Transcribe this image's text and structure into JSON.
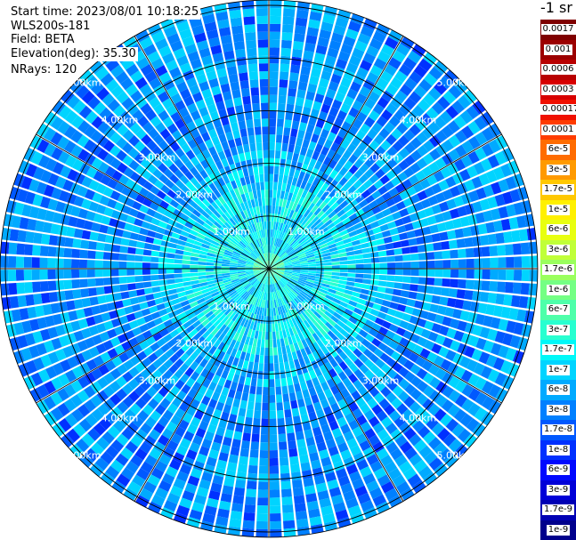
{
  "header": {
    "start_time": "Start time: 2023/08/01 10:18:25",
    "instrument": "WLS200s-181",
    "field": "Field: BETA",
    "elevation": "Elevation(deg): 35.30",
    "nrays": "NRays: 120"
  },
  "colorbar": {
    "unit": "-1 sr",
    "labels": [
      "0.0017",
      "0.001",
      "0.0006",
      "0.0003",
      "0.00017",
      "0.0001",
      "6e-5",
      "3e-5",
      "1.7e-5",
      "1e-5",
      "6e-6",
      "3e-6",
      "1.7e-6",
      "1e-6",
      "6e-7",
      "3e-7",
      "1.7e-7",
      "1e-7",
      "6e-8",
      "3e-8",
      "1.7e-8",
      "1e-8",
      "6e-9",
      "3e-9",
      "1.7e-9",
      "1e-9"
    ],
    "colors": [
      "#7f0000",
      "#9c0000",
      "#b80000",
      "#d80000",
      "#f01000",
      "#ff3c00",
      "#ff6c00",
      "#ff9a00",
      "#ffc800",
      "#fff000",
      "#e8ff10",
      "#c0ff38",
      "#9aff5e",
      "#74ff84",
      "#4effaa",
      "#28ffd0",
      "#00f8f8",
      "#00d4ff",
      "#00aaff",
      "#0080ff",
      "#0058ff",
      "#0030ff",
      "#0008ff",
      "#0000d8",
      "#0000b4",
      "#00008c"
    ]
  },
  "chart_data": {
    "type": "heatmap",
    "projection": "polar PPI scan",
    "range_rings_km": [
      1,
      2,
      3,
      4,
      5
    ],
    "ring_labels": [
      "1.00km",
      "2.00km",
      "3.00km",
      "4.00km",
      "5.00km"
    ],
    "max_range_km": 5.1,
    "nrays": 120,
    "azimuth_spokes_deg": [
      0,
      30,
      60,
      90,
      120,
      150,
      180,
      210,
      240,
      270,
      300,
      330
    ],
    "field": "BETA",
    "color_scale": "log",
    "value_range": [
      1e-09,
      0.0017
    ],
    "pattern": "near range 0.3-1.5 km dominated by ~1.7e-7 to 3e-7 (cyan-green); beyond ~2 km mostly 1e-7 to 1.7e-8 (light to medium blue) with scattered 6e-9 streaks"
  }
}
